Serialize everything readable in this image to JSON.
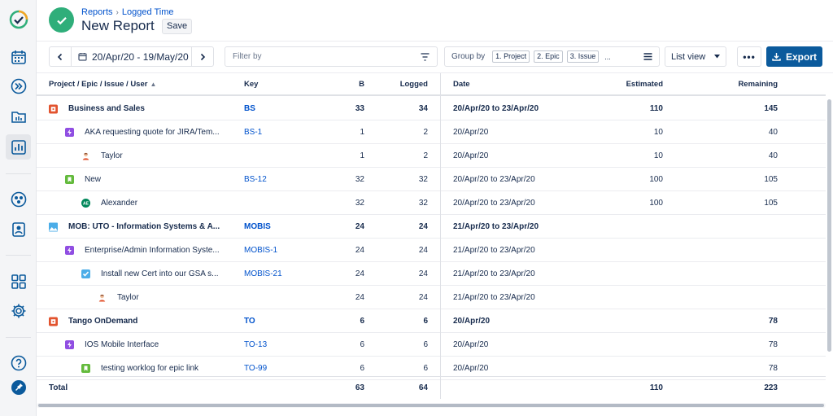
{
  "header": {
    "breadcrumb": [
      "Reports",
      "Logged Time"
    ],
    "title": "New Report",
    "save_label": "Save"
  },
  "toolbar": {
    "date_range": "20/Apr/20 - 19/May/20",
    "filter_placeholder": "Filter by",
    "group_by_label": "Group by",
    "group_chips": [
      "1. Project",
      "2. Epic",
      "3. Issue"
    ],
    "group_more": "...",
    "view_label": "List view",
    "more_label": "•••",
    "export_label": "Export"
  },
  "columns": {
    "name": "Project / Epic / Issue / User",
    "key": "Key",
    "b": "B",
    "logged": "Logged",
    "date": "Date",
    "estimated": "Estimated",
    "remaining": "Remaining"
  },
  "rows": [
    {
      "level": 0,
      "icon": "project-icon",
      "name": "Business and Sales",
      "key": "BS",
      "b": "33",
      "logged": "34",
      "date": "20/Apr/20 to 23/Apr/20",
      "estimated": "110",
      "remaining": "145"
    },
    {
      "level": 1,
      "icon": "epic-icon",
      "name": "AKA requesting quote for JIRA/Tem...",
      "key": "BS-1",
      "b": "1",
      "logged": "2",
      "date": "20/Apr/20",
      "estimated": "10",
      "remaining": "40"
    },
    {
      "level": 2,
      "icon": "user-avatar-icon",
      "name": "Taylor",
      "key": "",
      "b": "1",
      "logged": "2",
      "date": "20/Apr/20",
      "estimated": "10",
      "remaining": "40"
    },
    {
      "level": 1,
      "icon": "story-icon",
      "name": "New",
      "key": "BS-12",
      "b": "32",
      "logged": "32",
      "date": "20/Apr/20 to 23/Apr/20",
      "estimated": "100",
      "remaining": "105"
    },
    {
      "level": 2,
      "icon": "user-initials-icon",
      "initials": "AE",
      "name": "Alexander",
      "key": "",
      "b": "32",
      "logged": "32",
      "date": "20/Apr/20 to 23/Apr/20",
      "estimated": "100",
      "remaining": "105"
    },
    {
      "level": 0,
      "icon": "project-image-icon",
      "name": "MOB: UTO - Information Systems & A...",
      "key": "MOBIS",
      "b": "24",
      "logged": "24",
      "date": "21/Apr/20 to 23/Apr/20",
      "estimated": "",
      "remaining": ""
    },
    {
      "level": 1,
      "icon": "epic-icon",
      "name": "Enterprise/Admin Information Syste...",
      "key": "MOBIS-1",
      "b": "24",
      "logged": "24",
      "date": "21/Apr/20 to 23/Apr/20",
      "estimated": "",
      "remaining": ""
    },
    {
      "level": 2,
      "icon": "task-checkbox-icon",
      "name": "Install new Cert into our GSA s...",
      "key": "MOBIS-21",
      "b": "24",
      "logged": "24",
      "date": "21/Apr/20 to 23/Apr/20",
      "estimated": "",
      "remaining": ""
    },
    {
      "level": 3,
      "icon": "user-avatar-icon",
      "name": "Taylor",
      "key": "",
      "b": "24",
      "logged": "24",
      "date": "21/Apr/20 to 23/Apr/20",
      "estimated": "",
      "remaining": ""
    },
    {
      "level": 0,
      "icon": "project-icon",
      "name": "Tango OnDemand",
      "key": "TO",
      "b": "6",
      "logged": "6",
      "date": "20/Apr/20",
      "estimated": "",
      "remaining": "78"
    },
    {
      "level": 1,
      "icon": "epic-icon",
      "name": "IOS Mobile Interface",
      "key": "TO-13",
      "b": "6",
      "logged": "6",
      "date": "20/Apr/20",
      "estimated": "",
      "remaining": "78"
    },
    {
      "level": 2,
      "icon": "story-icon",
      "name": "testing worklog for epic link",
      "key": "TO-99",
      "b": "6",
      "logged": "6",
      "date": "20/Apr/20",
      "estimated": "",
      "remaining": "78"
    }
  ],
  "total": {
    "label": "Total",
    "b": "63",
    "logged": "64",
    "estimated": "110",
    "remaining": "223"
  },
  "colors": {
    "accent": "#0052CC",
    "export_bg": "#0B5A9C",
    "check_green": "#2FAE7A",
    "epic": "#904EE2",
    "story": "#63BA3C",
    "task": "#4BADE8",
    "project_red": "#E2532E"
  }
}
